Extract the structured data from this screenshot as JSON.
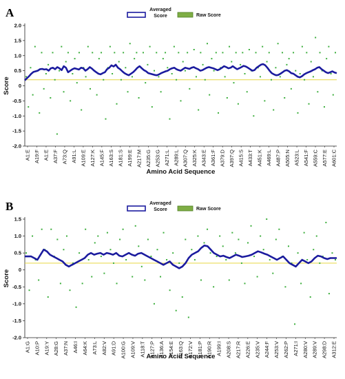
{
  "chart_data": [
    {
      "panel_label": "A",
      "type": "line",
      "xlabel": "Amino Acid Sequence",
      "ylabel": "Score",
      "ylim": [
        -2.0,
        2.0
      ],
      "yticks": [
        "2.0",
        "1.5",
        "1.0",
        "0.5",
        "0",
        "-0.5",
        "-1.0",
        "-1.5",
        "-2.0"
      ],
      "threshold": 0.2,
      "x_tick_labels": [
        "A1:E",
        "A19:F",
        "A1:E",
        "A37:F",
        "A73:Q",
        "A91:L",
        "A109:E",
        "A127:K",
        "A145:F",
        "A163:S",
        "A181:S",
        "A199:E",
        "A217:M",
        "A235:G",
        "A253:G",
        "A271:L",
        "A289:L",
        "A307:Q",
        "A325:K",
        "A343:E",
        "A361:F",
        "A379:D",
        "A397:Q",
        "A415:S",
        "A433:T",
        "A451:K",
        "A469:L",
        "A487:P",
        "A505:N",
        "A523:L",
        "A541:F",
        "A559:C",
        "A577:E",
        "A601:C"
      ],
      "legend": [
        "Averaged Score",
        "Raw Score"
      ],
      "series": [
        {
          "name": "Averaged Score",
          "values": [
            0.18,
            0.25,
            0.32,
            0.4,
            0.46,
            0.48,
            0.5,
            0.55,
            0.56,
            0.54,
            0.55,
            0.5,
            0.58,
            0.6,
            0.55,
            0.62,
            0.58,
            0.52,
            0.65,
            0.6,
            0.45,
            0.5,
            0.55,
            0.58,
            0.56,
            0.54,
            0.6,
            0.58,
            0.5,
            0.55,
            0.62,
            0.57,
            0.5,
            0.45,
            0.4,
            0.38,
            0.42,
            0.45,
            0.55,
            0.6,
            0.68,
            0.64,
            0.7,
            0.6,
            0.55,
            0.48,
            0.42,
            0.38,
            0.35,
            0.4,
            0.45,
            0.52,
            0.6,
            0.65,
            0.58,
            0.52,
            0.48,
            0.42,
            0.4,
            0.38,
            0.36,
            0.35,
            0.38,
            0.42,
            0.45,
            0.48,
            0.5,
            0.55,
            0.58,
            0.6,
            0.55,
            0.52,
            0.5,
            0.55,
            0.6,
            0.58,
            0.56,
            0.6,
            0.62,
            0.58,
            0.55,
            0.5,
            0.52,
            0.56,
            0.6,
            0.62,
            0.6,
            0.58,
            0.55,
            0.52,
            0.55,
            0.6,
            0.65,
            0.62,
            0.58,
            0.6,
            0.65,
            0.6,
            0.55,
            0.58,
            0.62,
            0.66,
            0.64,
            0.6,
            0.55,
            0.5,
            0.52,
            0.6,
            0.65,
            0.7,
            0.72,
            0.68,
            0.6,
            0.5,
            0.42,
            0.38,
            0.35,
            0.36,
            0.4,
            0.45,
            0.5,
            0.52,
            0.48,
            0.42,
            0.4,
            0.35,
            0.3,
            0.28,
            0.32,
            0.38,
            0.42,
            0.45,
            0.48,
            0.52,
            0.55,
            0.6,
            0.62,
            0.55,
            0.5,
            0.45,
            0.42,
            0.45,
            0.48,
            0.44,
            0.42
          ]
        },
        {
          "name": "Raw Score",
          "values": [
            0.3,
            -0.7,
            0.6,
            -0.3,
            1.3,
            0.5,
            -0.9,
            1.1,
            -0.1,
            0.4,
            0.7,
            -0.4,
            1.1,
            0.2,
            -1.6,
            0.5,
            1.3,
            -0.2,
            0.8,
            1.1,
            -0.5,
            0.4,
            0.9,
            0.1,
            1.1,
            -0.8,
            0.6,
            0.3,
            1.3,
            -0.1,
            1.1,
            0.5,
            -0.3,
            0.9,
            1.1,
            0.2,
            -1.1,
            0.6,
            1.3,
            0.4,
            1.1,
            -0.6,
            0.8,
            0.2,
            1.1,
            0.6,
            -0.2,
            1.4,
            0.3,
            0.9,
            1.1,
            -0.4,
            0.6,
            1.1,
            0.1,
            0.7,
            1.3,
            -0.7,
            0.5,
            1.1,
            0.3,
            -0.2,
            0.9,
            1.1,
            0.6,
            -1.1,
            0.4,
            1.3,
            0.2,
            1.1,
            -0.5,
            0.8,
            0.5,
            1.1,
            -0.1,
            0.6,
            1.2,
            0.3,
            -0.8,
            1.1,
            0.7,
            0.2,
            1.4,
            -0.3,
            0.9,
            0.5,
            1.1,
            -0.9,
            0.6,
            1.1,
            0.3,
            -0.4,
            1.3,
            0.8,
            0.1,
            1.1,
            -0.6,
            0.7,
            1.1,
            0.4,
            -0.2,
            1.2,
            0.5,
            -1.0,
            1.1,
            0.6,
            0.3,
            1.3,
            -0.5,
            0.8,
            1.1,
            0.2,
            -0.8,
            0.6,
            1.4,
            0.3,
            1.1,
            -0.4,
            0.7,
            0.9,
            -0.1,
            1.1,
            0.5,
            -0.9,
            0.4,
            1.3,
            0.2,
            1.1,
            -0.6,
            0.8,
            0.3,
            1.6,
            -0.2,
            1.1,
            0.5,
            -0.7,
            0.9,
            1.3,
            0.4,
            -0.3,
            1.1
          ]
        }
      ]
    },
    {
      "panel_label": "B",
      "type": "line",
      "xlabel": "Amino Acid Sequence",
      "ylabel": "Score",
      "ylim": [
        -2.0,
        1.5
      ],
      "yticks": [
        "1.5",
        "1.0",
        "0.5",
        "0",
        "-0.5",
        "-1.0",
        "-1.5",
        "-2.0"
      ],
      "threshold": 0.2,
      "x_tick_labels": [
        "A1:G",
        "A10:P",
        "A19:Y",
        "A28:G",
        "A37:N",
        "A46:I",
        "A64:K",
        "A73:L",
        "A82:V",
        "A91:D",
        "A100:G",
        "A109:V",
        "A118:T",
        "A127:P",
        "A136:A",
        "A154:E",
        "A163:Q",
        "A172:V",
        "A181:P",
        "A190:R",
        "A199:I",
        "A208:S",
        "A217:R",
        "A226:E",
        "A235:V",
        "A244:F",
        "A253:V",
        "A262:P",
        "A271:I",
        "A280:V",
        "A289:V",
        "A298:D",
        "A312:E"
      ],
      "legend": [
        "Averaged Score",
        "Raw Score"
      ],
      "series": [
        {
          "name": "Averaged Score",
          "values": [
            0.4,
            0.4,
            0.4,
            0.35,
            0.3,
            0.45,
            0.6,
            0.55,
            0.45,
            0.4,
            0.35,
            0.3,
            0.25,
            0.15,
            0.1,
            0.15,
            0.2,
            0.25,
            0.3,
            0.35,
            0.45,
            0.5,
            0.45,
            0.48,
            0.5,
            0.45,
            0.5,
            0.48,
            0.45,
            0.5,
            0.42,
            0.4,
            0.45,
            0.5,
            0.45,
            0.42,
            0.48,
            0.5,
            0.45,
            0.4,
            0.35,
            0.3,
            0.25,
            0.2,
            0.15,
            0.2,
            0.25,
            0.15,
            0.1,
            0.05,
            0.1,
            0.2,
            0.35,
            0.45,
            0.5,
            0.55,
            0.65,
            0.72,
            0.7,
            0.6,
            0.5,
            0.45,
            0.4,
            0.42,
            0.38,
            0.35,
            0.4,
            0.45,
            0.42,
            0.38,
            0.4,
            0.42,
            0.45,
            0.5,
            0.55,
            0.52,
            0.48,
            0.45,
            0.4,
            0.35,
            0.3,
            0.35,
            0.4,
            0.3,
            0.2,
            0.15,
            0.1,
            0.2,
            0.3,
            0.25,
            0.2,
            0.25,
            0.35,
            0.42,
            0.4,
            0.35,
            0.32,
            0.35,
            0.35,
            0.35
          ]
        },
        {
          "name": "Raw Score",
          "values": [
            0.5,
            -0.6,
            1.0,
            0.3,
            -0.3,
            1.2,
            0.6,
            -0.8,
            1.2,
            0.4,
            0.9,
            -0.4,
            0.6,
            1.0,
            -0.6,
            0.2,
            -1.1,
            0.5,
            -0.4,
            1.2,
            0.3,
            -0.2,
            0.8,
            1.0,
            0.4,
            -0.1,
            1.1,
            0.6,
            0.2,
            -0.4,
            0.9,
            1.2,
            0.3,
            0.5,
            -0.2,
            1.3,
            0.7,
            0.1,
            -0.3,
            0.9,
            0.4,
            -1.0,
            0.6,
            -0.2,
            1.1,
            0.3,
            -0.6,
            0.5,
            -1.2,
            0.2,
            -0.8,
            0.9,
            -1.4,
            0.6,
            0.3,
            1.0,
            -0.3,
            0.8,
            1.2,
            0.5,
            -0.5,
            0.4,
            1.0,
            0.7,
            0.3,
            -0.3,
            1.1,
            0.5,
            0.9,
            0.2,
            -0.4,
            0.8,
            1.3,
            0.4,
            -0.2,
            1.0,
            0.6,
            1.5,
            0.3,
            -0.1,
            0.9,
            1.2,
            0.4,
            -0.5,
            0.7,
            0.2,
            -1.6,
            0.5,
            -0.4,
            1.1,
            0.3,
            -0.8,
            0.6,
            1.0,
            0.2,
            0.4,
            1.4,
            -0.7,
            0.5,
            0.3
          ]
        }
      ]
    }
  ]
}
